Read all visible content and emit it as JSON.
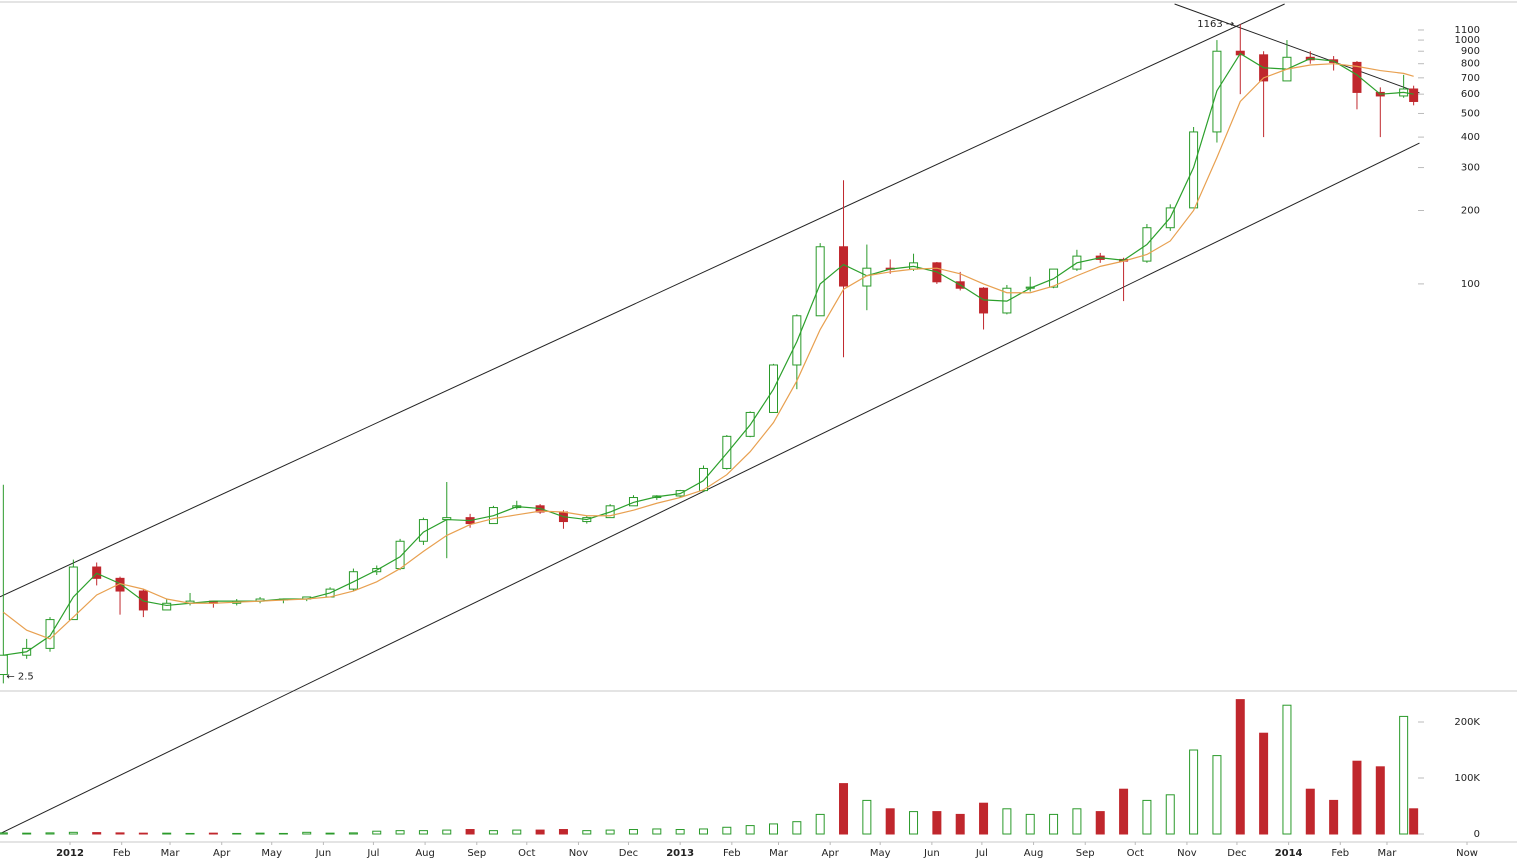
{
  "chart_data": {
    "type": "candlestick",
    "x": [
      -40,
      -26,
      -12,
      2,
      16,
      30,
      44,
      58,
      72,
      86,
      100,
      114,
      128,
      142,
      156,
      170,
      184,
      198,
      212,
      226,
      240,
      254,
      268,
      282,
      296,
      310,
      324,
      338,
      352,
      366,
      380,
      394,
      408,
      422,
      436,
      450,
      464,
      478,
      492,
      506,
      520,
      534,
      548,
      562,
      576,
      590,
      604,
      618,
      632,
      646,
      660,
      674,
      688,
      702,
      716,
      730,
      744,
      758,
      772,
      786,
      800,
      806
    ],
    "open": [
      2.5,
      3.0,
      3.2,
      4.2,
      6.9,
      6.2,
      5.5,
      4.6,
      4.9,
      5.0,
      4.9,
      5.0,
      5.1,
      5.1,
      5.2,
      5.6,
      6.6,
      6.8,
      8.8,
      10.8,
      11.0,
      10.4,
      12.1,
      12.3,
      11.6,
      10.6,
      11.0,
      12.3,
      13.3,
      13.5,
      14.2,
      17.5,
      23.7,
      29.7,
      46.5,
      74,
      142,
      98,
      116,
      115,
      122,
      102,
      96,
      76,
      96,
      97,
      115,
      130,
      126,
      124,
      170,
      205,
      420,
      900,
      870,
      680,
      850,
      830,
      810,
      610,
      590,
      630
    ],
    "high": [
      15,
      3.5,
      4.3,
      7.4,
      7.2,
      6.3,
      5.6,
      5.1,
      5.4,
      5.0,
      5.1,
      5.2,
      5.1,
      5.2,
      5.7,
      6.8,
      7.0,
      9.0,
      11.0,
      15.4,
      11.4,
      12.3,
      12.9,
      12.5,
      11.8,
      11.2,
      12.5,
      13.6,
      13.6,
      14.3,
      18.0,
      24.0,
      30.0,
      47.0,
      75.0,
      147,
      266,
      145,
      126,
      133,
      123,
      112,
      97,
      99,
      107,
      115,
      138,
      134,
      128,
      176,
      212,
      440,
      1000,
      1163,
      900,
      1000,
      900,
      860,
      820,
      640,
      720,
      650
    ],
    "low": [
      2.3,
      2.9,
      3.1,
      4.2,
      5.8,
      4.4,
      4.3,
      4.6,
      4.8,
      4.7,
      4.8,
      4.9,
      4.9,
      5.0,
      5.2,
      5.5,
      6.4,
      6.7,
      8.5,
      7.5,
      10.0,
      10.4,
      11.9,
      11.4,
      9.9,
      10.4,
      11.0,
      12.3,
      13.0,
      13.3,
      14.0,
      17.3,
      23.5,
      29.6,
      37.0,
      74,
      50,
      78,
      110,
      113,
      100,
      94,
      65,
      75,
      93,
      96,
      113,
      122,
      85,
      122,
      165,
      205,
      380,
      600,
      400,
      680,
      800,
      750,
      520,
      400,
      580,
      540
    ],
    "close": [
      3.0,
      3.2,
      4.2,
      6.9,
      6.2,
      5.5,
      4.6,
      4.9,
      5.0,
      4.9,
      5.0,
      5.1,
      5.1,
      5.2,
      5.6,
      6.6,
      6.8,
      8.8,
      10.8,
      11.0,
      10.4,
      12.1,
      12.3,
      11.6,
      10.6,
      11.0,
      12.3,
      13.3,
      13.5,
      14.2,
      17.5,
      23.7,
      29.7,
      46.5,
      74,
      142,
      98,
      116,
      115,
      122,
      102,
      96,
      76,
      96,
      97,
      115,
      130,
      126,
      124,
      170,
      205,
      420,
      900,
      870,
      680,
      850,
      830,
      810,
      610,
      590,
      630,
      560
    ],
    "volume": [
      2000,
      1500,
      2000,
      3000,
      2500,
      2000,
      1500,
      1500,
      1000,
      1500,
      1000,
      1500,
      1000,
      3000,
      1500,
      2000,
      5000,
      6000,
      6000,
      7000,
      8000,
      6000,
      7000,
      7000,
      8000,
      6000,
      7000,
      8000,
      9000,
      8000,
      9000,
      12000,
      15000,
      18000,
      22000,
      35000,
      90000,
      60000,
      45000,
      40000,
      40000,
      35000,
      55000,
      45000,
      35000,
      35000,
      45000,
      40000,
      80000,
      60000,
      70000,
      150000,
      140000,
      240000,
      180000,
      230000,
      80000,
      60000,
      130000,
      120000,
      210000,
      45000
    ],
    "moving_averages": [
      {
        "color": "#2ca02c",
        "values": [
          3.0,
          3.1,
          3.6,
          5.2,
          6.5,
          5.9,
          5.0,
          4.8,
          4.9,
          5.0,
          5.0,
          5.0,
          5.1,
          5.1,
          5.4,
          6.0,
          6.7,
          7.6,
          9.6,
          10.8,
          10.7,
          11.2,
          12.2,
          12.0,
          11.1,
          10.8,
          11.6,
          12.7,
          13.4,
          13.8,
          15.6,
          20.2,
          26.4,
          37.0,
          58,
          100,
          120,
          108,
          115,
          118,
          112,
          99,
          86,
          85,
          96,
          105,
          122,
          128,
          125,
          145,
          187,
          300,
          620,
          880,
          770,
          760,
          840,
          820,
          720,
          600,
          610,
          600
        ]
      },
      {
        "color": "#e8a050",
        "values": [
          4.5,
          3.8,
          3.5,
          4.3,
          5.3,
          5.9,
          5.6,
          5.1,
          4.9,
          4.9,
          4.95,
          5.0,
          5.05,
          5.1,
          5.2,
          5.5,
          6.0,
          6.8,
          8.0,
          9.3,
          10.3,
          10.9,
          11.3,
          11.7,
          11.6,
          11.2,
          11.2,
          11.8,
          12.6,
          13.3,
          14.3,
          16.5,
          20.5,
          27,
          40,
          65,
          95,
          108,
          112,
          115,
          116,
          110,
          100,
          92,
          92,
          98,
          108,
          118,
          124,
          132,
          150,
          200,
          330,
          560,
          700,
          760,
          790,
          800,
          780,
          750,
          730,
          710
        ]
      }
    ],
    "up_color": "#2a9a2a",
    "down_color": "#c0272d",
    "trend_lines": [
      {
        "x": [
          -42,
          728.6
        ],
        "y": [
          5.21,
          1406
        ]
      },
      {
        "x": [
          -42,
          809.5
        ],
        "y": [
          0.556,
          378
        ]
      },
      {
        "x": [
          662.6,
          809.5
        ],
        "y": [
          1406,
          607
        ]
      }
    ],
    "annotations": [
      {
        "text": "1163 →",
        "x": 702,
        "y": 1163
      },
      {
        "text": "← 2.5",
        "x": -40,
        "y": 2.5
      }
    ],
    "xlim": [
      -42,
      868
    ],
    "xticks": [
      {
        "value": 0,
        "label": "2012"
      },
      {
        "value": 31,
        "label": "Feb"
      },
      {
        "value": 60,
        "label": "Mar"
      },
      {
        "value": 91,
        "label": "Apr"
      },
      {
        "value": 121,
        "label": "May"
      },
      {
        "value": 152,
        "label": "Jun"
      },
      {
        "value": 182,
        "label": "Jul"
      },
      {
        "value": 213,
        "label": "Aug"
      },
      {
        "value": 244,
        "label": "Sep"
      },
      {
        "value": 274,
        "label": "Oct"
      },
      {
        "value": 305,
        "label": "Nov"
      },
      {
        "value": 335,
        "label": "Dec"
      },
      {
        "value": 366,
        "label": "2013"
      },
      {
        "value": 397,
        "label": "Feb"
      },
      {
        "value": 425,
        "label": "Mar"
      },
      {
        "value": 456,
        "label": "Apr"
      },
      {
        "value": 486,
        "label": "May"
      },
      {
        "value": 517,
        "label": "Jun"
      },
      {
        "value": 547,
        "label": "Jul"
      },
      {
        "value": 578,
        "label": "Aug"
      },
      {
        "value": 609,
        "label": "Sep"
      },
      {
        "value": 639,
        "label": "Oct"
      },
      {
        "value": 670,
        "label": "Nov"
      },
      {
        "value": 700,
        "label": "Dec"
      },
      {
        "value": 731,
        "label": "2014"
      },
      {
        "value": 762,
        "label": "Feb"
      },
      {
        "value": 790,
        "label": "Mar"
      },
      {
        "value": 838,
        "label": "Now"
      }
    ],
    "ylim": [
      2.16,
      1460
    ],
    "log_scale": true,
    "yticks": [
      100,
      200,
      300,
      400,
      500,
      600,
      700,
      800,
      900,
      1000,
      1100
    ],
    "volume_ylim": [
      0,
      253600
    ],
    "volume_ticks": [
      0,
      {
        "value": 100000,
        "label": "100K"
      },
      {
        "value": 200000,
        "label": "200K"
      }
    ]
  }
}
